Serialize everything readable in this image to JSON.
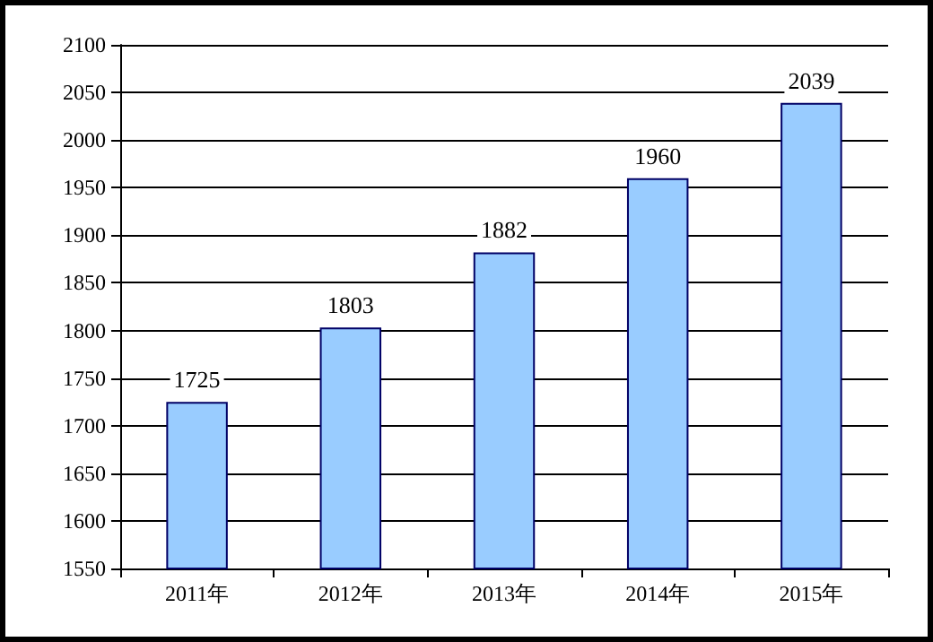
{
  "chart_data": {
    "type": "bar",
    "categories": [
      "2011年",
      "2012年",
      "2013年",
      "2014年",
      "2015年"
    ],
    "values": [
      1725,
      1803,
      1882,
      1960,
      2039
    ],
    "color": "#99ccff",
    "ylim": [
      1550,
      2100
    ],
    "yticks": [
      1550,
      1600,
      1650,
      1700,
      1750,
      1800,
      1850,
      1900,
      1950,
      2000,
      2050,
      2100
    ],
    "grid": "y",
    "data_labels": true
  }
}
